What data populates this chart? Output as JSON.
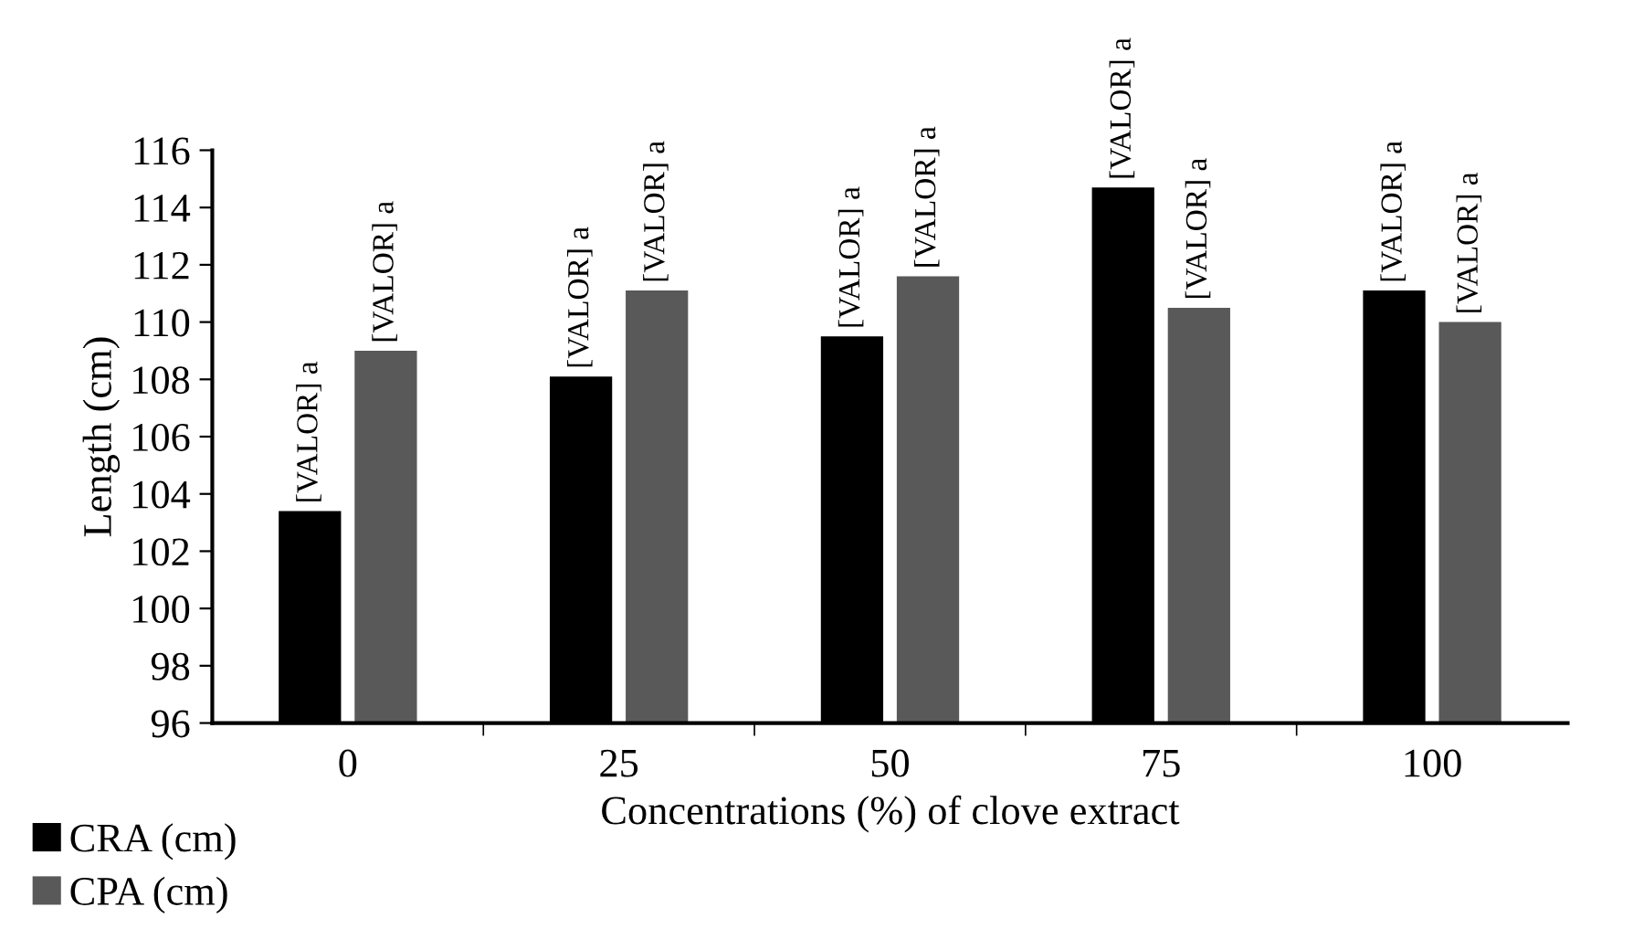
{
  "chart_data": {
    "type": "bar",
    "xlabel": "Concentrations (%) of clove extract",
    "ylabel": "Length (cm)",
    "categories": [
      "0",
      "25",
      "50",
      "75",
      "100"
    ],
    "series": [
      {
        "name": "CRA (cm)",
        "color": "#000000",
        "values": [
          103.4,
          108.1,
          109.5,
          114.7,
          111.1
        ],
        "value_labels": [
          "[VALOR] a",
          "[VALOR] a",
          "[VALOR] a",
          "[VALOR] a",
          "[VALOR] a"
        ]
      },
      {
        "name": "CPA (cm)",
        "color": "#595959",
        "values": [
          109.0,
          111.1,
          111.6,
          110.5,
          110.0
        ],
        "value_labels": [
          "[VALOR] a",
          "[VALOR] a",
          "[VALOR] a",
          "[VALOR] a",
          "[VALOR] a"
        ]
      }
    ],
    "ylim": [
      96,
      116
    ],
    "yticks": [
      96,
      98,
      100,
      102,
      104,
      106,
      108,
      110,
      112,
      114,
      116
    ],
    "grid": false,
    "legend": "bottom left"
  }
}
